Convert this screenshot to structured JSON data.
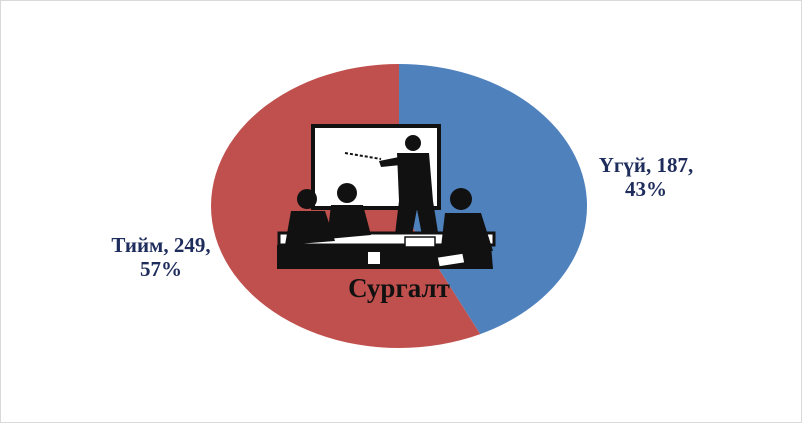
{
  "chart_data": {
    "type": "pie",
    "center_label": "Сургалт",
    "values": [
      187,
      249
    ],
    "value_labels": [
      "Үгүй, 187, 43%",
      "Тийм, 249, 57%"
    ],
    "colors": [
      "#4f81bd",
      "#c0504d"
    ]
  }
}
